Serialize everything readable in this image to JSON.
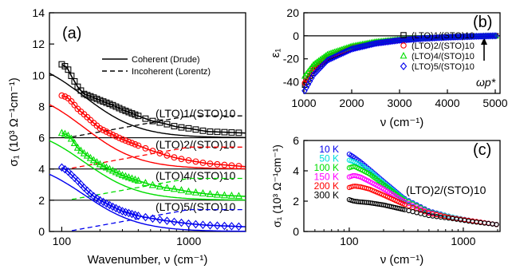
{
  "chart_data": [
    {
      "panel": "(a)",
      "type": "scatter",
      "xlabel": "Wavenumber, ν (cm⁻¹)",
      "ylabel": "σ₁ (10³ Ω⁻¹cm⁻¹)",
      "xscale": "log",
      "xlim": [
        80,
        2800
      ],
      "ylim": [
        0,
        14
      ],
      "xticks": [
        100,
        1000
      ],
      "xtick_labels": [
        "100",
        "1000"
      ],
      "yticks": [
        0,
        2,
        4,
        6,
        8,
        10,
        12,
        14
      ],
      "ytick_labels": [
        "0",
        "2",
        "4",
        "6",
        "8",
        "10",
        "12",
        "14"
      ],
      "legend": {
        "position": "top-right",
        "entries": [
          {
            "label": "Coherent (Drude)",
            "style": "solid"
          },
          {
            "label": "Incoherent (Lorentz)",
            "style": "dashed"
          }
        ]
      },
      "series": [
        {
          "name": "(LTO)1/(STO)10",
          "color": "#000000",
          "marker": "square",
          "offset": 6,
          "x": [
            100,
            110,
            120,
            135,
            150,
            175,
            200,
            250,
            300,
            400,
            500,
            650,
            800,
            1000,
            1400,
            2000,
            2800
          ],
          "y": [
            10.7,
            10.5,
            9.9,
            9.2,
            8.8,
            8.6,
            8.4,
            8.1,
            7.8,
            7.4,
            7.1,
            6.9,
            6.7,
            6.6,
            6.4,
            6.35,
            6.3
          ]
        },
        {
          "name": "(LTO)2/(STO)10",
          "color": "#ff0000",
          "marker": "circle",
          "offset": 4,
          "x": [
            100,
            110,
            120,
            135,
            150,
            175,
            200,
            250,
            300,
            400,
            500,
            650,
            800,
            1000,
            1400,
            2000,
            2800
          ],
          "y": [
            8.7,
            8.6,
            8.3,
            7.8,
            7.5,
            7.0,
            6.6,
            6.2,
            5.9,
            5.5,
            5.2,
            4.9,
            4.7,
            4.55,
            4.35,
            4.25,
            4.15
          ]
        },
        {
          "name": "(LTO)4/(STO)10",
          "color": "#00dd00",
          "marker": "triangle",
          "offset": 2,
          "x": [
            100,
            110,
            120,
            135,
            150,
            175,
            200,
            250,
            300,
            400,
            500,
            650,
            800,
            1000,
            1400,
            2000,
            2800
          ],
          "y": [
            6.3,
            6.2,
            5.9,
            5.3,
            5.0,
            4.6,
            4.3,
            3.9,
            3.6,
            3.25,
            3.0,
            2.8,
            2.7,
            2.55,
            2.4,
            2.3,
            2.25
          ]
        },
        {
          "name": "(LTO)5/(STO)10",
          "color": "#0000ee",
          "marker": "diamond",
          "offset": 0,
          "x": [
            100,
            110,
            120,
            135,
            150,
            175,
            200,
            250,
            300,
            400,
            500,
            650,
            800,
            1000,
            1400,
            2000,
            2800
          ],
          "y": [
            4.1,
            3.9,
            3.6,
            3.2,
            2.8,
            2.3,
            2.0,
            1.6,
            1.3,
            1.0,
            0.85,
            0.7,
            0.6,
            0.5,
            0.4,
            0.35,
            0.3
          ]
        }
      ],
      "annotations": [
        "(LTO)1/(STO)10",
        "(LTO)2/(STO)10",
        "(LTO)4/(STO)10",
        "(LTO)5/(STO)10"
      ]
    },
    {
      "panel": "(b)",
      "type": "scatter",
      "xlabel": "ν (cm⁻¹)",
      "ylabel": "ε₁",
      "xlim": [
        1000,
        5100
      ],
      "ylim": [
        -50,
        20
      ],
      "xticks": [
        1000,
        2000,
        3000,
        4000,
        5000
      ],
      "xtick_labels": [
        "1000",
        "2000",
        "3000",
        "4000",
        "5000"
      ],
      "yticks": [
        -40,
        -20,
        0,
        20
      ],
      "ytick_labels": [
        "-40",
        "-20",
        "0",
        "20"
      ],
      "legend": {
        "position": "right",
        "entries": [
          "(LTO)1/(STO)10",
          "(LTO)2/(STO)10",
          "(LTO)4/(STO)10",
          "(LTO)5/(STO)10"
        ]
      },
      "series": [
        {
          "name": "(LTO)1/(STO)10",
          "color": "#000000",
          "marker": "square",
          "x": [
            1000,
            1200,
            1500,
            2000,
            2500,
            3000,
            3500,
            4000,
            4500,
            5000
          ],
          "y": [
            -44,
            -30,
            -19,
            -10.5,
            -6,
            -3.6,
            -2.2,
            -1.2,
            -0.6,
            0
          ]
        },
        {
          "name": "(LTO)2/(STO)10",
          "color": "#ff0000",
          "marker": "circle",
          "x": [
            1000,
            1200,
            1500,
            2000,
            2500,
            3000,
            3500,
            4000,
            4500,
            5000
          ],
          "y": [
            -42,
            -29,
            -18,
            -10,
            -5.8,
            -3.5,
            -2.1,
            -1.2,
            -0.6,
            0
          ]
        },
        {
          "name": "(LTO)4/(STO)10",
          "color": "#00dd00",
          "marker": "triangle",
          "x": [
            1000,
            1200,
            1500,
            2000,
            2500,
            3000,
            3500,
            4000,
            4500,
            5000
          ],
          "y": [
            -36,
            -25,
            -16,
            -9,
            -5.2,
            -3.2,
            -2,
            -1.1,
            -0.5,
            0
          ]
        },
        {
          "name": "(LTO)5/(STO)10",
          "color": "#0000ee",
          "marker": "diamond",
          "x": [
            1000,
            1200,
            1500,
            2000,
            2500,
            3000,
            3500,
            4000,
            4500,
            5000
          ],
          "y": [
            -49,
            -34,
            -21,
            -11.5,
            -6.6,
            -3.9,
            -2.3,
            -1.3,
            -0.6,
            0
          ]
        }
      ],
      "annotations": [
        "ωp*"
      ]
    },
    {
      "panel": "(c)",
      "type": "scatter",
      "xlabel": "ν (cm⁻¹)",
      "ylabel": "σ₁ (10³ Ω⁻¹cm⁻¹)",
      "xscale": "log",
      "xlim": [
        40,
        2100
      ],
      "ylim": [
        0,
        6
      ],
      "xticks": [
        100,
        1000
      ],
      "xtick_labels": [
        "100",
        "1000"
      ],
      "yticks": [
        0,
        2,
        4,
        6
      ],
      "ytick_labels": [
        "0",
        "2",
        "4",
        "6"
      ],
      "sample": "(LTO)2/(STO)10",
      "series": [
        {
          "name": "10 K",
          "color": "#0000ee",
          "x": [
            100,
            110,
            125,
            150,
            200,
            300,
            500,
            800,
            1200,
            2000
          ],
          "y": [
            5.1,
            4.9,
            4.6,
            4.1,
            3.3,
            2.2,
            1.35,
            0.95,
            0.7,
            0.45
          ]
        },
        {
          "name": "50 K",
          "color": "#00dddd",
          "x": [
            100,
            110,
            125,
            150,
            200,
            300,
            500,
            800,
            1200,
            2000
          ],
          "y": [
            4.7,
            4.6,
            4.4,
            4.0,
            3.2,
            2.15,
            1.3,
            0.95,
            0.7,
            0.45
          ]
        },
        {
          "name": "100 K",
          "color": "#00dd00",
          "x": [
            100,
            110,
            125,
            150,
            200,
            300,
            500,
            800,
            1200,
            2000
          ],
          "y": [
            4.2,
            4.3,
            4.1,
            3.8,
            3.1,
            2.1,
            1.3,
            0.9,
            0.7,
            0.45
          ]
        },
        {
          "name": "150 K",
          "color": "#ff00ff",
          "x": [
            100,
            110,
            125,
            150,
            200,
            300,
            500,
            800,
            1200,
            2000
          ],
          "y": [
            3.6,
            3.7,
            3.6,
            3.3,
            2.8,
            2.0,
            1.25,
            0.9,
            0.7,
            0.45
          ]
        },
        {
          "name": "200 K",
          "color": "#ff0000",
          "x": [
            100,
            110,
            125,
            150,
            200,
            300,
            500,
            800,
            1200,
            2000
          ],
          "y": [
            2.9,
            3.0,
            2.95,
            2.8,
            2.4,
            1.8,
            1.2,
            0.9,
            0.7,
            0.45
          ]
        },
        {
          "name": "300 K",
          "color": "#000000",
          "x": [
            100,
            110,
            125,
            150,
            200,
            300,
            500,
            800,
            1200,
            2000
          ],
          "y": [
            2.1,
            2.0,
            1.95,
            1.9,
            1.75,
            1.45,
            1.05,
            0.85,
            0.65,
            0.45
          ]
        }
      ]
    }
  ]
}
